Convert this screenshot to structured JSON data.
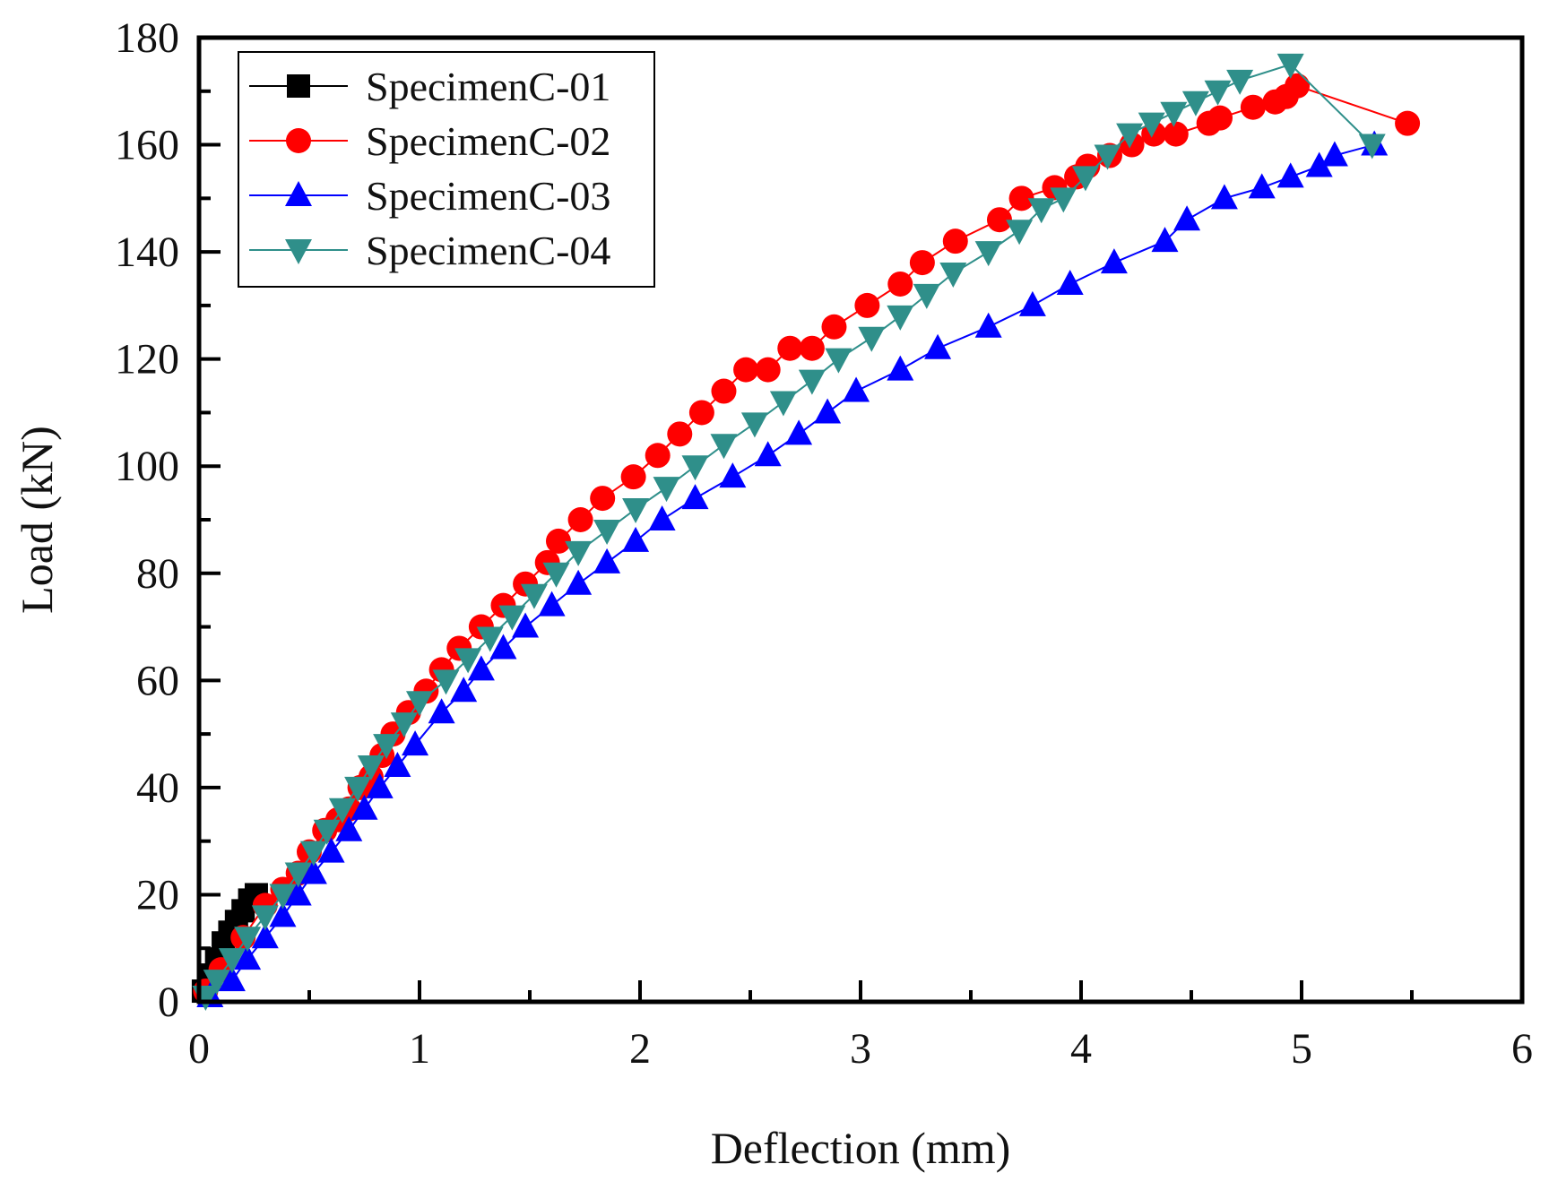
{
  "chart_data": {
    "type": "line",
    "title": "",
    "xlabel": "Deflection (mm)",
    "ylabel": "Load (kN)",
    "xlim": [
      0,
      6
    ],
    "ylim": [
      0,
      180
    ],
    "x_ticks": [
      0,
      1,
      2,
      3,
      4,
      5,
      6
    ],
    "y_ticks": [
      0,
      20,
      40,
      60,
      80,
      100,
      120,
      140,
      160,
      180
    ],
    "grid": false,
    "legend_position": "top-left",
    "series": [
      {
        "name": "SpecimenC-01",
        "color": "#000000",
        "marker": "square",
        "x": [
          0.02,
          0.05,
          0.08,
          0.11,
          0.14,
          0.17,
          0.2,
          0.23,
          0.26
        ],
        "y": [
          2,
          5,
          8,
          11,
          13,
          15,
          17,
          19,
          20
        ]
      },
      {
        "name": "SpecimenC-02",
        "color": "#ff0000",
        "marker": "circle",
        "x": [
          0.03,
          0.1,
          0.2,
          0.3,
          0.38,
          0.45,
          0.5,
          0.57,
          0.63,
          0.68,
          0.73,
          0.78,
          0.83,
          0.88,
          0.95,
          1.03,
          1.1,
          1.18,
          1.28,
          1.38,
          1.48,
          1.58,
          1.63,
          1.73,
          1.83,
          1.97,
          2.08,
          2.18,
          2.28,
          2.38,
          2.48,
          2.58,
          2.68,
          2.78,
          2.88,
          3.03,
          3.18,
          3.28,
          3.43,
          3.63,
          3.73,
          3.88,
          3.98,
          4.03,
          4.13,
          4.23,
          4.33,
          4.43,
          4.58,
          4.63,
          4.78,
          4.88,
          4.93,
          4.98,
          5.48
        ],
        "y": [
          2,
          6,
          12,
          18,
          21,
          24,
          28,
          32,
          34,
          36,
          40,
          42,
          46,
          50,
          54,
          58,
          62,
          66,
          70,
          74,
          78,
          82,
          86,
          90,
          94,
          98,
          102,
          106,
          110,
          114,
          118,
          118,
          122,
          122,
          126,
          130,
          134,
          138,
          142,
          146,
          150,
          152,
          154,
          156,
          158,
          160,
          162,
          162,
          164,
          165,
          167,
          168,
          169,
          171,
          164
        ]
      },
      {
        "name": "SpecimenC-03",
        "color": "#0000ff",
        "marker": "triangle-up",
        "x": [
          0.05,
          0.15,
          0.22,
          0.3,
          0.38,
          0.45,
          0.52,
          0.6,
          0.68,
          0.75,
          0.82,
          0.9,
          0.98,
          1.1,
          1.2,
          1.28,
          1.38,
          1.48,
          1.6,
          1.72,
          1.85,
          1.98,
          2.1,
          2.25,
          2.42,
          2.58,
          2.72,
          2.85,
          2.98,
          3.18,
          3.35,
          3.58,
          3.78,
          3.95,
          4.15,
          4.38,
          4.48,
          4.65,
          4.82,
          4.95,
          5.08,
          5.15,
          5.33
        ],
        "y": [
          1,
          4,
          8,
          12,
          16,
          20,
          24,
          28,
          32,
          36,
          40,
          44,
          48,
          54,
          58,
          62,
          66,
          70,
          74,
          78,
          82,
          86,
          90,
          94,
          98,
          102,
          106,
          110,
          114,
          118,
          122,
          126,
          130,
          134,
          138,
          142,
          146,
          150,
          152,
          154,
          156,
          158,
          160
        ]
      },
      {
        "name": "SpecimenC-04",
        "color": "#2f8f8a",
        "marker": "triangle-down",
        "x": [
          0.03,
          0.08,
          0.15,
          0.22,
          0.3,
          0.38,
          0.45,
          0.52,
          0.58,
          0.65,
          0.72,
          0.78,
          0.85,
          0.93,
          1.0,
          1.12,
          1.22,
          1.32,
          1.42,
          1.52,
          1.62,
          1.72,
          1.85,
          1.98,
          2.12,
          2.25,
          2.38,
          2.52,
          2.65,
          2.78,
          2.9,
          3.05,
          3.18,
          3.3,
          3.42,
          3.58,
          3.72,
          3.82,
          3.92,
          4.02,
          4.12,
          4.22,
          4.32,
          4.42,
          4.52,
          4.62,
          4.72,
          4.95,
          5.32
        ],
        "y": [
          1,
          4,
          8,
          12,
          16,
          20,
          24,
          28,
          32,
          36,
          40,
          44,
          48,
          52,
          56,
          60,
          64,
          68,
          72,
          76,
          80,
          84,
          88,
          92,
          96,
          100,
          104,
          108,
          112,
          116,
          120,
          124,
          128,
          132,
          136,
          140,
          144,
          148,
          150,
          154,
          158,
          162,
          164,
          166,
          168,
          170,
          172,
          175,
          160
        ]
      }
    ]
  }
}
